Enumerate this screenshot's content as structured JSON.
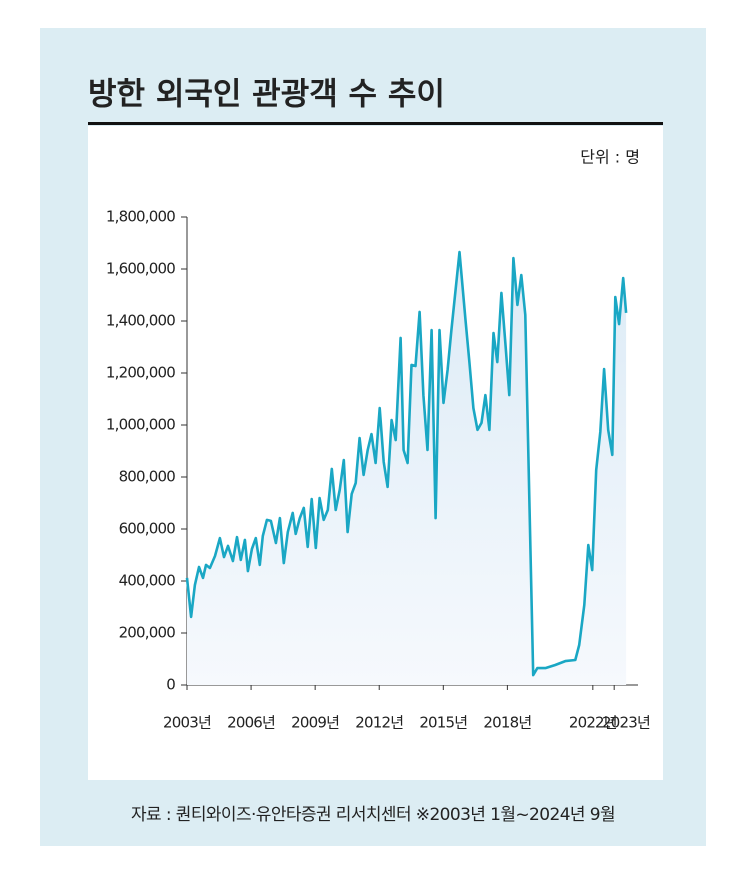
{
  "chart_data": {
    "type": "line",
    "title": "방한 외국인 관광객 수 추이",
    "unit": "단위 : 명",
    "source": "자료 : 퀀티와이즈·유안타증권 리서치센터 ※2003년 1월~2024년 9월",
    "x": [
      2003.0,
      2003.19,
      2003.37,
      2003.56,
      2003.75,
      2003.89,
      2004.07,
      2004.31,
      2004.54,
      2004.73,
      2004.92,
      2005.15,
      2005.34,
      2005.52,
      2005.71,
      2005.85,
      2006.04,
      2006.22,
      2006.41,
      2006.55,
      2006.74,
      2006.93,
      2007.16,
      2007.35,
      2007.53,
      2007.72,
      2007.95,
      2008.09,
      2008.28,
      2008.47,
      2008.65,
      2008.84,
      2009.03,
      2009.21,
      2009.4,
      2009.59,
      2009.78,
      2009.96,
      2010.15,
      2010.34,
      2010.52,
      2010.71,
      2010.9,
      2011.08,
      2011.27,
      2011.46,
      2011.64,
      2011.83,
      2012.02,
      2012.21,
      2012.39,
      2012.58,
      2012.77,
      2013.0,
      2013.14,
      2013.33,
      2013.51,
      2013.7,
      2013.89,
      2014.07,
      2014.26,
      2014.45,
      2014.64,
      2014.82,
      2015.01,
      2015.2,
      2015.38,
      2015.76,
      2016.04,
      2016.22,
      2016.41,
      2016.6,
      2016.79,
      2016.97,
      2017.16,
      2017.35,
      2017.53,
      2017.72,
      2017.91,
      2018.09,
      2018.28,
      2018.47,
      2018.65,
      2018.84,
      2019.21,
      2019.4,
      2019.78,
      2020.24,
      2020.71,
      2021.18,
      2021.36,
      2021.6,
      2021.79,
      2021.97,
      2022.16,
      2022.35,
      2022.53,
      2022.72,
      2022.91,
      2023.05,
      2023.23,
      2023.42,
      2023.56
    ],
    "series": [
      {
        "name": "방한 외국인 관광객 수",
        "color": "#1aa7c4",
        "values": [
          412000,
          262000,
          385000,
          454000,
          412000,
          462000,
          450000,
          496000,
          565000,
          492000,
          535000,
          477000,
          569000,
          481000,
          558000,
          438000,
          523000,
          565000,
          462000,
          573000,
          635000,
          631000,
          546000,
          642000,
          469000,
          588000,
          662000,
          581000,
          642000,
          681000,
          531000,
          715000,
          527000,
          719000,
          635000,
          673000,
          831000,
          673000,
          750000,
          865000,
          588000,
          735000,
          777000,
          950000,
          808000,
          904000,
          965000,
          854000,
          1065000,
          858000,
          762000,
          1019000,
          942000,
          1335000,
          904000,
          854000,
          1231000,
          1227000,
          1435000,
          1115000,
          904000,
          1365000,
          642000,
          1365000,
          1085000,
          1212000,
          1365000,
          1665000,
          1404000,
          1242000,
          1065000,
          981000,
          1008000,
          1115000,
          981000,
          1354000,
          1242000,
          1508000,
          1308000,
          1115000,
          1642000,
          1462000,
          1577000,
          1423000,
          38000,
          65000,
          65000,
          77000,
          92000,
          96000,
          154000,
          308000,
          538000,
          442000,
          827000,
          973000,
          1215000,
          981000,
          885000,
          1492000,
          1388000,
          1565000,
          1431000
        ]
      }
    ],
    "xlim": [
      2003,
      2023.6
    ],
    "xticks": [
      {
        "value": 2003,
        "label": "2003년"
      },
      {
        "value": 2006,
        "label": "2006년"
      },
      {
        "value": 2009,
        "label": "2009년"
      },
      {
        "value": 2012,
        "label": "2012년"
      },
      {
        "value": 2015,
        "label": "2015년"
      },
      {
        "value": 2018,
        "label": "2018년"
      },
      {
        "value": 2022,
        "label": "2022년"
      },
      {
        "value": 2023,
        "label": "2023년"
      }
    ],
    "ylim": [
      0,
      1800000
    ],
    "yticks": [
      0,
      {
        "value": 200000,
        "label": "200,000"
      },
      {
        "value": 400000,
        "label": "400,000"
      },
      {
        "value": 600000,
        "label": "600,000"
      },
      {
        "value": 800000,
        "label": "800,000"
      },
      {
        "value": 1000000,
        "label": "1,000,000"
      },
      {
        "value": 1200000,
        "label": "1,200,000"
      },
      {
        "value": 1400000,
        "label": "1,400,000"
      },
      {
        "value": 1600000,
        "label": "1,600,000"
      },
      {
        "value": 1800000,
        "label": "1,800,000"
      }
    ]
  }
}
